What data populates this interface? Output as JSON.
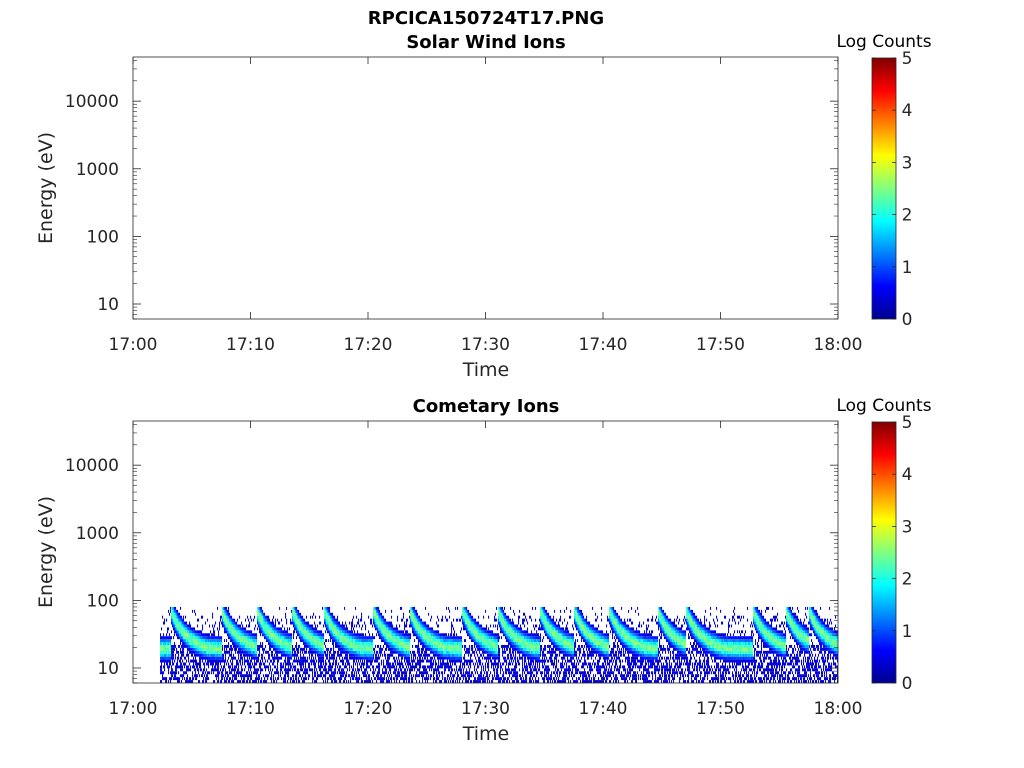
{
  "figure_title": "RPCICA150724T17.PNG",
  "colormap": [
    "#00008f",
    "#0000ff",
    "#0080ff",
    "#00ffff",
    "#80ff80",
    "#ffff00",
    "#ff8000",
    "#ff0000",
    "#800000"
  ],
  "chart_data": [
    {
      "type": "heatmap",
      "title": "Solar Wind Ions",
      "xlabel": "Time",
      "ylabel": "Energy (eV)",
      "x_ticks": [
        "17:00",
        "17:10",
        "17:20",
        "17:30",
        "17:40",
        "17:50",
        "18:00"
      ],
      "xlim_minutes": [
        0,
        60
      ],
      "y_scale": "log",
      "y_ticks": [
        {
          "value": 10,
          "label": "10"
        },
        {
          "value": 100,
          "label": "100"
        },
        {
          "value": 1000,
          "label": "1000"
        },
        {
          "value": 10000,
          "label": "10000"
        }
      ],
      "ylim": [
        6,
        45000
      ],
      "colorbar": {
        "label": "Log Counts",
        "range": [
          0,
          5
        ],
        "ticks": [
          "0",
          "1",
          "2",
          "3",
          "4",
          "5"
        ]
      },
      "has_signal": false
    },
    {
      "type": "heatmap",
      "title": "Cometary Ions",
      "xlabel": "Time",
      "ylabel": "Energy (eV)",
      "x_ticks": [
        "17:00",
        "17:10",
        "17:20",
        "17:30",
        "17:40",
        "17:50",
        "18:00"
      ],
      "xlim_minutes": [
        0,
        60
      ],
      "y_scale": "log",
      "y_ticks": [
        {
          "value": 10,
          "label": "10"
        },
        {
          "value": 100,
          "label": "100"
        },
        {
          "value": 1000,
          "label": "1000"
        },
        {
          "value": 10000,
          "label": "10000"
        }
      ],
      "ylim": [
        6,
        45000
      ],
      "colorbar": {
        "label": "Log Counts",
        "range": [
          0,
          5
        ],
        "ticks": [
          "0",
          "1",
          "2",
          "3",
          "4",
          "5"
        ]
      },
      "has_signal": true,
      "signal": {
        "start_minute": 2.3,
        "end_minute": 60,
        "energy_band_ev": [
          6,
          80
        ],
        "peak_energy_ev": 25,
        "max_log_counts": 2.8,
        "burst_minutes": [
          3.2,
          7.5,
          10.5,
          13.5,
          16.2,
          20.4,
          23.5,
          28.0,
          31.0,
          34.6,
          37.5,
          40.5,
          44.6,
          47.0,
          52.7,
          55.5,
          57.5
        ]
      }
    }
  ]
}
